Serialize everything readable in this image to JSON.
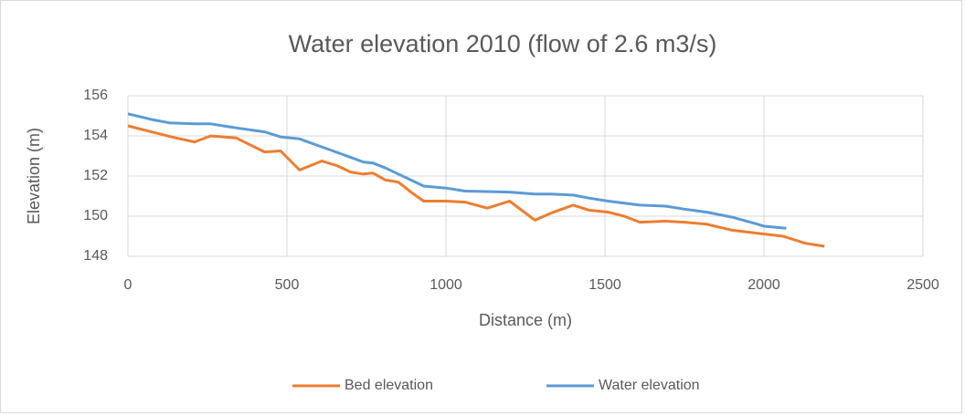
{
  "chart_data": {
    "type": "line",
    "title": "Water elevation 2010 (flow of 2.6 m3/s)",
    "x_label": "Distance (m)",
    "y_label": "Elevation (m)",
    "xlim": [
      0,
      2500
    ],
    "xticks": [
      0,
      500,
      1000,
      1500,
      2000,
      2500
    ],
    "ylim": [
      148,
      156
    ],
    "yticks": [
      148,
      150,
      152,
      154,
      156
    ],
    "grid": true,
    "legend": "bottom",
    "series": [
      {
        "name": "Bed elevation",
        "color": "#ed7d31",
        "x": [
          0,
          100,
          150,
          210,
          260,
          340,
          430,
          480,
          540,
          610,
          660,
          700,
          740,
          770,
          810,
          850,
          890,
          930,
          1000,
          1060,
          1130,
          1200,
          1280,
          1330,
          1400,
          1450,
          1510,
          1560,
          1610,
          1690,
          1750,
          1820,
          1900,
          1980,
          2060,
          2130,
          2190
        ],
        "values": [
          154.5,
          154.1,
          153.9,
          153.7,
          154.0,
          153.9,
          153.2,
          153.25,
          152.3,
          152.75,
          152.5,
          152.2,
          152.1,
          152.15,
          151.8,
          151.7,
          151.2,
          150.75,
          150.75,
          150.7,
          150.4,
          150.75,
          149.8,
          150.15,
          150.55,
          150.3,
          150.2,
          150.0,
          149.7,
          149.75,
          149.7,
          149.6,
          149.3,
          149.15,
          149.0,
          148.65,
          148.5
        ]
      },
      {
        "name": "Water elevation",
        "color": "#5b9bd5",
        "x": [
          0,
          80,
          130,
          210,
          260,
          340,
          430,
          480,
          540,
          610,
          680,
          740,
          770,
          810,
          850,
          890,
          930,
          1000,
          1060,
          1200,
          1280,
          1330,
          1400,
          1450,
          1510,
          1610,
          1690,
          1750,
          1820,
          1900,
          1980,
          2000,
          2070
        ],
        "values": [
          155.1,
          154.8,
          154.65,
          154.6,
          154.6,
          154.4,
          154.2,
          153.95,
          153.85,
          153.45,
          153.05,
          152.7,
          152.65,
          152.4,
          152.1,
          151.8,
          151.5,
          151.4,
          151.25,
          151.2,
          151.1,
          151.1,
          151.05,
          150.9,
          150.75,
          150.55,
          150.5,
          150.35,
          150.2,
          149.95,
          149.6,
          149.5,
          149.4
        ]
      }
    ]
  }
}
